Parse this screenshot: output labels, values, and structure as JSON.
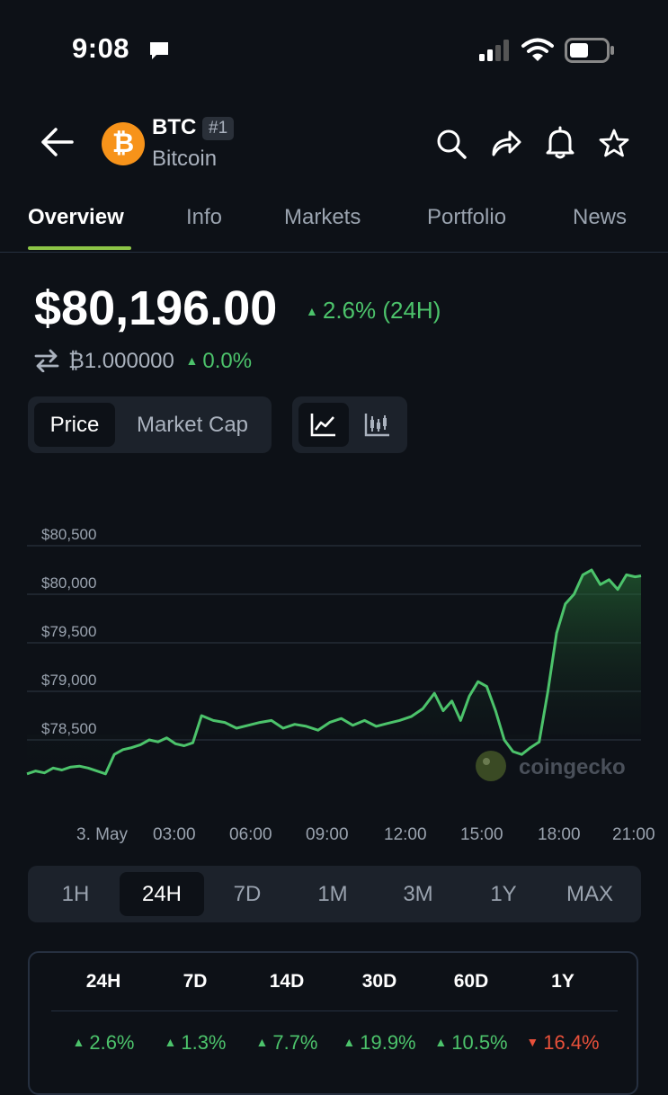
{
  "status_bar": {
    "time": "9:08"
  },
  "header": {
    "symbol": "BTC",
    "rank": "#1",
    "name": "Bitcoin",
    "logo_glyph": "₿"
  },
  "tabs": [
    {
      "label": "Overview"
    },
    {
      "label": "Info"
    },
    {
      "label": "Markets"
    },
    {
      "label": "Portfolio"
    },
    {
      "label": "News"
    }
  ],
  "price": {
    "value": "$80,196.00",
    "change": "2.6% (24H)",
    "btc_value": "₿1.000000",
    "btc_change": "0.0%"
  },
  "chart_toggle": {
    "price": "Price",
    "market_cap": "Market Cap"
  },
  "watermark": "coingecko",
  "chart_data": {
    "type": "area",
    "title": "",
    "y_ticks": [
      "$80,500",
      "$80,000",
      "$79,500",
      "$79,000",
      "$78,500"
    ],
    "x_ticks": [
      "3. May",
      "03:00",
      "06:00",
      "09:00",
      "12:00",
      "15:00",
      "18:00",
      "21:00"
    ],
    "ylim": [
      78100,
      80600
    ],
    "grid": true,
    "colors": {
      "line": "#4cc36b",
      "fill": "#1f5a2c"
    },
    "x_hours": [
      0,
      0.3,
      0.6,
      0.9,
      1.2,
      1.5,
      1.8,
      2.1,
      2.4,
      2.7,
      3.0,
      3.3,
      3.6,
      3.9,
      4.2,
      4.5,
      4.8,
      5.1,
      5.4,
      5.7,
      6.0,
      6.4,
      6.8,
      7.2,
      7.6,
      8.0,
      8.4,
      8.8,
      9.2,
      9.6,
      10.0,
      10.4,
      10.8,
      11.2,
      11.6,
      12.0,
      12.4,
      12.8,
      13.2,
      13.6,
      14.0,
      14.3,
      14.6,
      14.9,
      15.2,
      15.5,
      15.8,
      16.1,
      16.4,
      16.7,
      17.0,
      17.3,
      17.6,
      17.9,
      18.2,
      18.5,
      18.8,
      19.1,
      19.4,
      19.7,
      20.0,
      20.3,
      20.6,
      20.9,
      21.1
    ],
    "y_values": [
      78150,
      78180,
      78160,
      78210,
      78190,
      78220,
      78230,
      78210,
      78180,
      78150,
      78350,
      78400,
      78420,
      78450,
      78500,
      78480,
      78520,
      78460,
      78440,
      78470,
      78750,
      78700,
      78680,
      78620,
      78650,
      78680,
      78700,
      78620,
      78660,
      78640,
      78600,
      78680,
      78720,
      78650,
      78700,
      78640,
      78670,
      78700,
      78740,
      78820,
      78980,
      78800,
      78900,
      78700,
      78950,
      79100,
      79050,
      78800,
      78500,
      78380,
      78350,
      78420,
      78480,
      79000,
      79600,
      79900,
      80000,
      80200,
      80250,
      80100,
      80150,
      80050,
      80200,
      80180,
      80190
    ]
  },
  "range": {
    "options": [
      "1H",
      "24H",
      "7D",
      "1M",
      "3M",
      "1Y",
      "MAX"
    ],
    "selected": "24H"
  },
  "performance": {
    "headers": [
      "24H",
      "7D",
      "14D",
      "30D",
      "60D",
      "1Y"
    ],
    "values": [
      {
        "text": "2.6%",
        "dir": "up"
      },
      {
        "text": "1.3%",
        "dir": "up"
      },
      {
        "text": "7.7%",
        "dir": "up"
      },
      {
        "text": "19.9%",
        "dir": "up"
      },
      {
        "text": "10.5%",
        "dir": "up"
      },
      {
        "text": "16.4%",
        "dir": "down"
      }
    ]
  }
}
